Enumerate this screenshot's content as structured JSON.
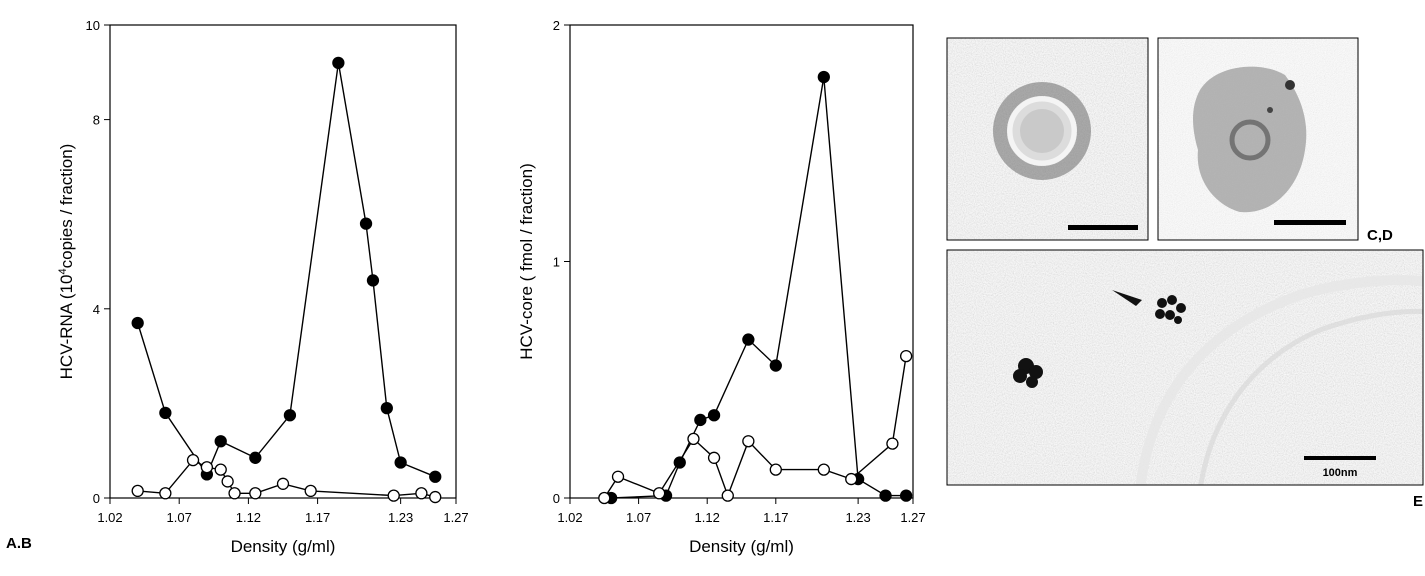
{
  "figure": {
    "label_ab": "A.B",
    "label_cd": "C,D",
    "label_e": "E",
    "scale_bar_label": "100nm"
  },
  "chart_data": [
    {
      "type": "line",
      "panel": "A",
      "xlabel": "Density (g/ml)",
      "ylabel": "HCV-RNA (10",
      "ylabel_sup": "4",
      "ylabel_tail": "copies / fraction)",
      "xlim": [
        1.02,
        1.27
      ],
      "ylim": [
        0,
        10
      ],
      "x_ticks": [
        1.02,
        1.07,
        1.12,
        1.17,
        1.23,
        1.27
      ],
      "x_tick_labels": [
        "1.02",
        "1.07",
        "1.12",
        "1.17",
        "1.23",
        "1.27"
      ],
      "y_ticks": [
        0,
        4,
        8,
        10
      ],
      "y_tick_labels": [
        "0",
        "4",
        "8",
        "10"
      ],
      "baseline": 0,
      "series": [
        {
          "marker": "filled",
          "color": "#000000",
          "x": [
            1.04,
            1.06,
            1.09,
            1.1,
            1.125,
            1.15,
            1.185,
            1.205,
            1.21,
            1.22,
            1.23,
            1.255
          ],
          "y": [
            3.7,
            1.8,
            0.5,
            1.2,
            0.85,
            1.75,
            9.2,
            5.8,
            4.6,
            1.9,
            0.75,
            0.45
          ]
        },
        {
          "marker": "open",
          "color": "#000000",
          "x": [
            1.04,
            1.06,
            1.08,
            1.09,
            1.1,
            1.105,
            1.11,
            1.125,
            1.145,
            1.165,
            1.225,
            1.245,
            1.255
          ],
          "y": [
            0.15,
            0.1,
            0.8,
            0.65,
            0.6,
            0.35,
            0.1,
            0.1,
            0.3,
            0.15,
            0.05,
            0.1,
            0.02
          ]
        }
      ]
    },
    {
      "type": "line",
      "panel": "B",
      "xlabel": "Density (g/ml)",
      "ylabel": "HCV-core ( fmol / fraction)",
      "xlim": [
        1.02,
        1.27
      ],
      "ylim": [
        0,
        2
      ],
      "x_ticks": [
        1.02,
        1.07,
        1.12,
        1.17,
        1.23,
        1.27
      ],
      "x_tick_labels": [
        "1.02",
        "1.07",
        "1.12",
        "1.17",
        "1.23",
        "1.27"
      ],
      "y_ticks": [
        0,
        1,
        2
      ],
      "y_tick_labels": [
        "0",
        "1",
        "2"
      ],
      "baseline": 0,
      "series": [
        {
          "marker": "filled",
          "color": "#000000",
          "x": [
            1.05,
            1.09,
            1.1,
            1.115,
            1.125,
            1.15,
            1.17,
            1.205,
            1.23,
            1.25,
            1.265
          ],
          "y": [
            0.0,
            0.01,
            0.15,
            0.33,
            0.35,
            0.67,
            0.56,
            1.78,
            0.08,
            0.01,
            0.01
          ]
        },
        {
          "marker": "open",
          "color": "#000000",
          "x": [
            1.045,
            1.055,
            1.085,
            1.11,
            1.125,
            1.135,
            1.15,
            1.17,
            1.205,
            1.225,
            1.255,
            1.265
          ],
          "y": [
            0.0,
            0.09,
            0.02,
            0.25,
            0.17,
            0.01,
            0.24,
            0.12,
            0.12,
            0.08,
            0.23,
            0.6
          ]
        }
      ]
    }
  ]
}
